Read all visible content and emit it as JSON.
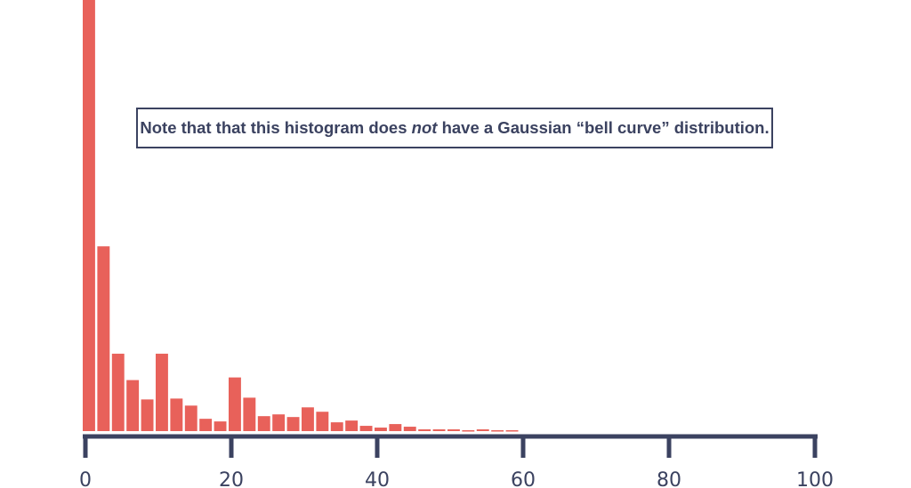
{
  "chart_data": {
    "type": "bar",
    "bin_width": 2,
    "x": [
      0,
      2,
      4,
      6,
      8,
      10,
      12,
      14,
      16,
      18,
      20,
      22,
      24,
      26,
      28,
      30,
      32,
      34,
      36,
      38,
      40,
      42,
      44,
      46,
      48,
      50,
      52,
      54,
      56,
      58
    ],
    "values": [
      490,
      210,
      88,
      58,
      36,
      88,
      37,
      29,
      14,
      11,
      61,
      38,
      17,
      19,
      16,
      27,
      22,
      10,
      12,
      6,
      4,
      8,
      5,
      2,
      2,
      2,
      1,
      2,
      1,
      1
    ],
    "xlim": [
      0,
      100
    ],
    "ylim": [
      0,
      490
    ],
    "xticks": [
      "0",
      "20",
      "40",
      "60",
      "80",
      "100"
    ],
    "title": "",
    "xlabel": "",
    "ylabel": "",
    "grid": false,
    "bar_color": "#e8615a",
    "axis_color": "#3b4260",
    "annotation": {
      "before": "Note that that this histogram does ",
      "emphasis": "not",
      "after": " have a Gaussian “bell curve” distribution."
    }
  }
}
